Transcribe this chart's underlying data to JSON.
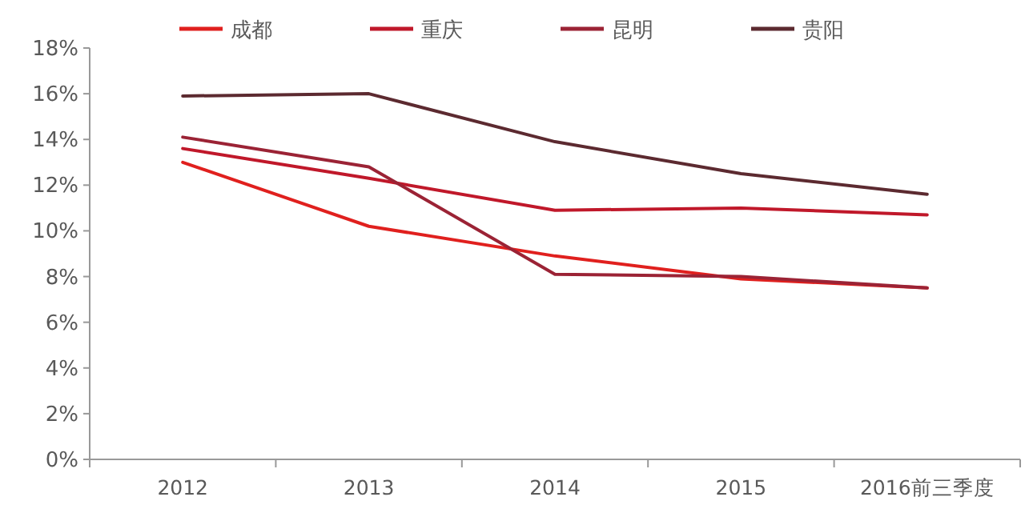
{
  "chart_data": {
    "type": "line",
    "categories": [
      "2012",
      "2013",
      "2014",
      "2015",
      "2016前三季度"
    ],
    "ylim": [
      0,
      18
    ],
    "yticks": [
      {
        "value": 0,
        "label": "0%"
      },
      {
        "value": 2,
        "label": "2%"
      },
      {
        "value": 4,
        "label": "4%"
      },
      {
        "value": 6,
        "label": "6%"
      },
      {
        "value": 8,
        "label": "8%"
      },
      {
        "value": 10,
        "label": "10%"
      },
      {
        "value": 12,
        "label": "12%"
      },
      {
        "value": 14,
        "label": "14%"
      },
      {
        "value": 16,
        "label": "16%"
      },
      {
        "value": 18,
        "label": "18%"
      }
    ],
    "legend": "top",
    "grid": false,
    "marker": "none",
    "line_style": "solid",
    "series": [
      {
        "name": "成都",
        "color": "#e0201e",
        "values": [
          13.0,
          10.2,
          8.9,
          7.9,
          7.5
        ]
      },
      {
        "name": "重庆",
        "color": "#c0182a",
        "values": [
          13.6,
          12.3,
          10.9,
          11.0,
          10.7
        ]
      },
      {
        "name": "昆明",
        "color": "#9b2335",
        "values": [
          14.1,
          12.8,
          8.1,
          8.0,
          7.5
        ]
      },
      {
        "name": "贵阳",
        "color": "#5c2a30",
        "values": [
          15.9,
          16.0,
          13.9,
          12.5,
          11.6
        ]
      }
    ]
  }
}
